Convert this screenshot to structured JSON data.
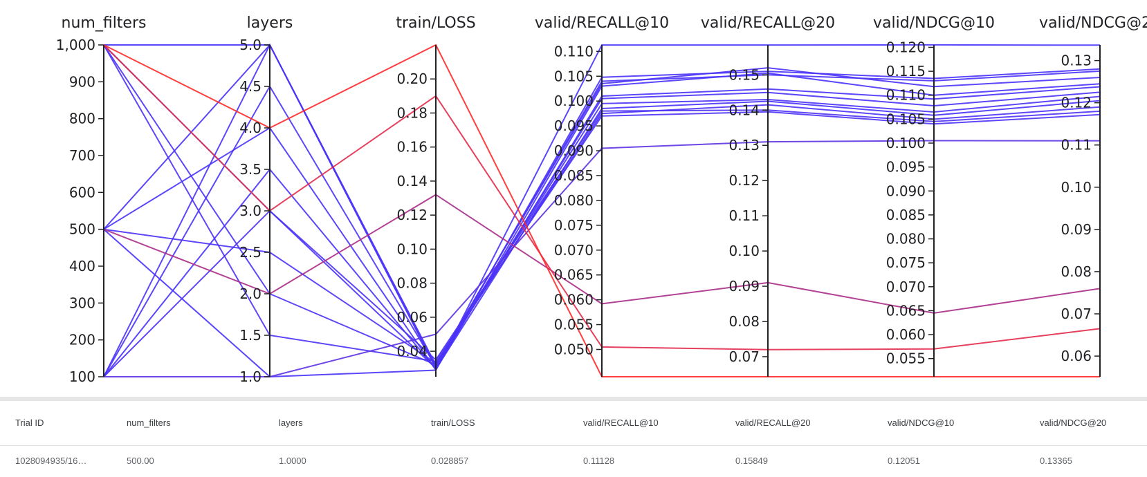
{
  "chart_data": {
    "type": "parallel_coordinates",
    "axes": [
      {
        "name": "num_filters",
        "range": [
          100,
          1000
        ],
        "ticks": [
          100,
          200,
          300,
          400,
          500,
          600,
          700,
          800,
          900,
          1000
        ],
        "tick_labels": [
          "100",
          "200",
          "300",
          "400",
          "500",
          "600",
          "700",
          "800",
          "900",
          "1,000"
        ]
      },
      {
        "name": "layers",
        "range": [
          1,
          5
        ],
        "ticks": [
          1,
          1.5,
          2,
          2.5,
          3,
          3.5,
          4,
          4.5,
          5
        ],
        "tick_labels": [
          "1.0",
          "1.5",
          "2.0",
          "2.5",
          "3.0",
          "3.5",
          "4.0",
          "4.5",
          "5.0"
        ]
      },
      {
        "name": "train/LOSS",
        "range": [
          0.025,
          0.22
        ],
        "ticks": [
          0.04,
          0.06,
          0.08,
          0.1,
          0.12,
          0.14,
          0.16,
          0.18,
          0.2
        ],
        "tick_labels": [
          "0.04",
          "0.06",
          "0.08",
          "0.10",
          "0.12",
          "0.14",
          "0.16",
          "0.18",
          "0.20"
        ]
      },
      {
        "name": "valid/RECALL@10",
        "range": [
          0.0445,
          0.1113
        ],
        "ticks": [
          0.05,
          0.055,
          0.06,
          0.065,
          0.07,
          0.075,
          0.08,
          0.085,
          0.09,
          0.095,
          0.1,
          0.105,
          0.11
        ],
        "tick_labels": [
          "0.050",
          "0.055",
          "0.060",
          "0.065",
          "0.070",
          "0.075",
          "0.080",
          "0.085",
          "0.090",
          "0.095",
          "0.100",
          "0.105",
          "0.110"
        ]
      },
      {
        "name": "valid/RECALL@20",
        "range": [
          0.0643,
          0.1585
        ],
        "ticks": [
          0.07,
          0.08,
          0.09,
          0.1,
          0.11,
          0.12,
          0.13,
          0.14,
          0.15
        ],
        "tick_labels": [
          "0.07",
          "0.08",
          "0.09",
          "0.10",
          "0.11",
          "0.12",
          "0.13",
          "0.14",
          "0.15"
        ]
      },
      {
        "name": "valid/NDCG@10",
        "range": [
          0.0512,
          0.1205
        ],
        "ticks": [
          0.055,
          0.06,
          0.065,
          0.07,
          0.075,
          0.08,
          0.085,
          0.09,
          0.095,
          0.1,
          0.105,
          0.11,
          0.115,
          0.12
        ],
        "tick_labels": [
          "0.055",
          "0.060",
          "0.065",
          "0.070",
          "0.075",
          "0.080",
          "0.085",
          "0.090",
          "0.095",
          "0.100",
          "0.105",
          "0.110",
          "0.115",
          "0.120"
        ]
      },
      {
        "name": "valid/NDCG@20",
        "range": [
          0.0551,
          0.1337
        ],
        "ticks": [
          0.06,
          0.07,
          0.08,
          0.09,
          0.1,
          0.11,
          0.12,
          0.13
        ],
        "tick_labels": [
          "0.06",
          "0.07",
          "0.08",
          "0.09",
          "0.10",
          "0.11",
          "0.12",
          "0.13"
        ]
      }
    ],
    "color_scale": {
      "low": "#4433ff",
      "high": "#ff2a2a",
      "by": "train/LOSS"
    },
    "trials": [
      [
        500,
        1.0,
        0.028857,
        0.11128,
        0.15849,
        0.12051,
        0.13365
      ],
      [
        1000,
        5.0,
        0.03,
        0.1048,
        0.151,
        0.1135,
        0.128
      ],
      [
        500,
        5.0,
        0.031,
        0.104,
        0.15,
        0.113,
        0.1275
      ],
      [
        100,
        5.0,
        0.032,
        0.1035,
        0.152,
        0.1118,
        0.126
      ],
      [
        500,
        4.0,
        0.029,
        0.103,
        0.1505,
        0.11,
        0.1245
      ],
      [
        1000,
        3.0,
        0.03,
        0.101,
        0.146,
        0.1092,
        0.1238
      ],
      [
        100,
        4.5,
        0.031,
        0.1005,
        0.145,
        0.1078,
        0.1225
      ],
      [
        1000,
        2.0,
        0.032,
        0.0995,
        0.143,
        0.1065,
        0.1215
      ],
      [
        100,
        3.5,
        0.0295,
        0.0985,
        0.1425,
        0.1058,
        0.1205
      ],
      [
        500,
        2.5,
        0.033,
        0.0975,
        0.1415,
        0.105,
        0.119
      ],
      [
        100,
        3.0,
        0.035,
        0.098,
        0.14,
        0.1045,
        0.118
      ],
      [
        1000,
        1.5,
        0.034,
        0.097,
        0.1395,
        0.104,
        0.1172
      ],
      [
        100,
        1.0,
        0.05,
        0.0905,
        0.131,
        0.1005,
        0.111
      ],
      [
        500,
        2.0,
        0.132,
        0.0592,
        0.091,
        0.0645,
        0.076
      ],
      [
        1000,
        3.0,
        0.19,
        0.0505,
        0.072,
        0.057,
        0.0665
      ],
      [
        1000,
        4.0,
        0.22,
        0.0445,
        0.0643,
        0.0512,
        0.0551
      ]
    ]
  },
  "table": {
    "headers": {
      "trial_id": "Trial ID",
      "num_filters": "num_filters",
      "layers": "layers",
      "train_loss": "train/LOSS",
      "recall10": "valid/RECALL@10",
      "recall20": "valid/RECALL@20",
      "ndcg10": "valid/NDCG@10",
      "ndcg20": "valid/NDCG@20"
    },
    "row": {
      "trial_id": "1028094935/16…",
      "num_filters": "500.00",
      "layers": "1.0000",
      "train_loss": "0.028857",
      "recall10": "0.11128",
      "recall20": "0.15849",
      "ndcg10": "0.12051",
      "ndcg20": "0.13365"
    }
  }
}
